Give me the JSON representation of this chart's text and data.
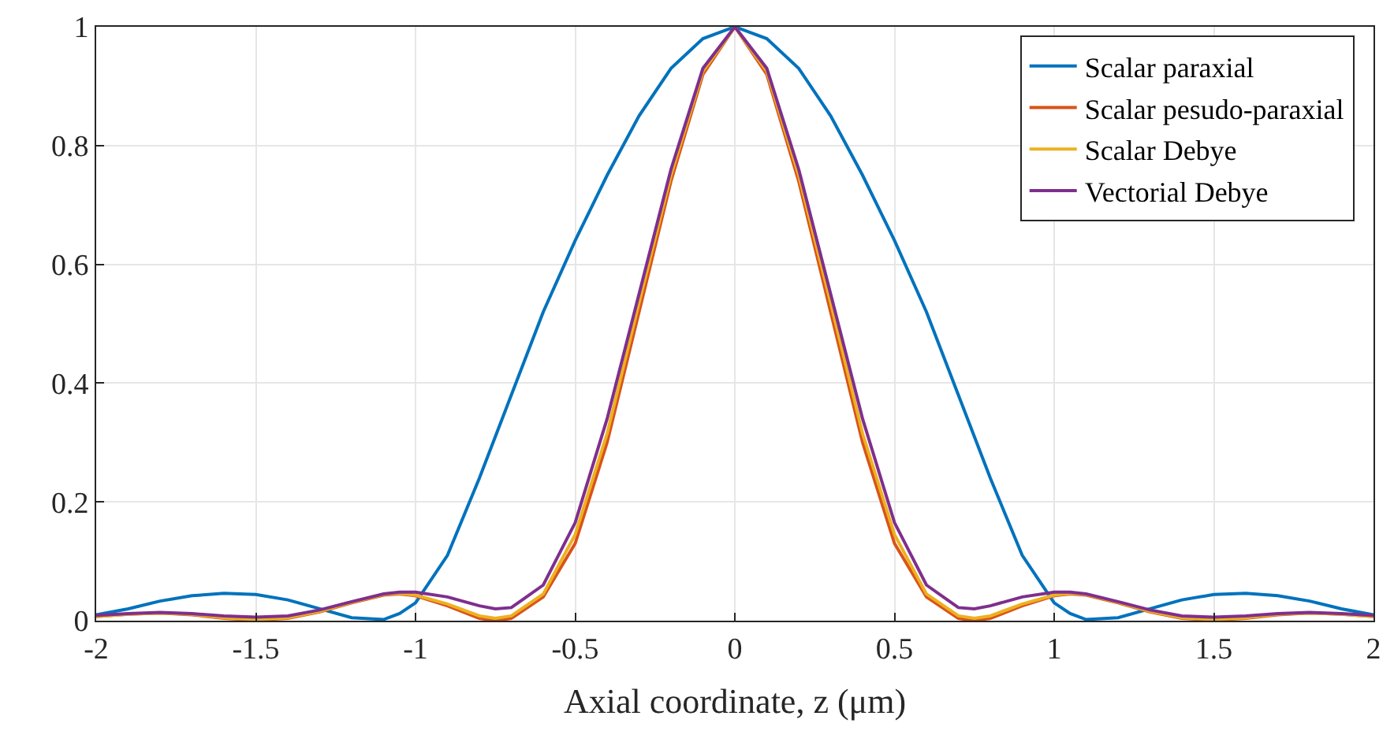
{
  "chart_data": {
    "type": "line",
    "xlabel": "Axial coordinate, z (μm)",
    "x": [
      -2,
      -1.9,
      -1.8,
      -1.7,
      -1.6,
      -1.5,
      -1.4,
      -1.3,
      -1.2,
      -1.1,
      -1.05,
      -1,
      -0.9,
      -0.8,
      -0.75,
      -0.7,
      -0.6,
      -0.5,
      -0.4,
      -0.3,
      -0.2,
      -0.1,
      0,
      0.1,
      0.2,
      0.3,
      0.4,
      0.5,
      0.6,
      0.7,
      0.75,
      0.8,
      0.9,
      1,
      1.05,
      1.1,
      1.2,
      1.3,
      1.4,
      1.5,
      1.6,
      1.7,
      1.8,
      1.9,
      2
    ],
    "series": [
      {
        "name": "Scalar paraxial",
        "color": "#0072bd",
        "values": [
          0.01,
          0.02,
          0.033,
          0.042,
          0.046,
          0.044,
          0.035,
          0.02,
          0.005,
          0.002,
          0.012,
          0.03,
          0.11,
          0.24,
          0.31,
          0.38,
          0.52,
          0.64,
          0.75,
          0.85,
          0.93,
          0.98,
          1,
          0.98,
          0.93,
          0.85,
          0.75,
          0.64,
          0.52,
          0.38,
          0.31,
          0.24,
          0.11,
          0.03,
          0.012,
          0.002,
          0.005,
          0.02,
          0.035,
          0.044,
          0.046,
          0.042,
          0.033,
          0.02,
          0.01
        ]
      },
      {
        "name": "Scalar pesudo-paraxial",
        "color": "#d95319",
        "values": [
          0.007,
          0.011,
          0.013,
          0.01,
          0.004,
          0.001,
          0.004,
          0.015,
          0.03,
          0.043,
          0.045,
          0.042,
          0.025,
          0.004,
          0,
          0.004,
          0.04,
          0.13,
          0.3,
          0.52,
          0.74,
          0.92,
          1,
          0.92,
          0.74,
          0.52,
          0.3,
          0.13,
          0.04,
          0.004,
          0,
          0.004,
          0.025,
          0.042,
          0.045,
          0.043,
          0.03,
          0.015,
          0.004,
          0.001,
          0.004,
          0.01,
          0.013,
          0.011,
          0.007
        ]
      },
      {
        "name": "Scalar Debye",
        "color": "#edb120",
        "values": [
          0.007,
          0.011,
          0.013,
          0.011,
          0.005,
          0.002,
          0.005,
          0.016,
          0.031,
          0.044,
          0.046,
          0.043,
          0.028,
          0.008,
          0.004,
          0.008,
          0.045,
          0.145,
          0.315,
          0.535,
          0.75,
          0.925,
          1,
          0.925,
          0.75,
          0.535,
          0.315,
          0.145,
          0.045,
          0.008,
          0.004,
          0.008,
          0.028,
          0.043,
          0.046,
          0.044,
          0.031,
          0.016,
          0.005,
          0.002,
          0.005,
          0.011,
          0.013,
          0.011,
          0.007
        ]
      },
      {
        "name": "Vectorial Debye",
        "color": "#7e2f8e",
        "values": [
          0.009,
          0.012,
          0.014,
          0.012,
          0.008,
          0.006,
          0.008,
          0.018,
          0.032,
          0.045,
          0.048,
          0.048,
          0.04,
          0.025,
          0.02,
          0.022,
          0.06,
          0.165,
          0.34,
          0.55,
          0.76,
          0.93,
          1,
          0.93,
          0.76,
          0.55,
          0.34,
          0.165,
          0.06,
          0.022,
          0.02,
          0.025,
          0.04,
          0.048,
          0.048,
          0.045,
          0.032,
          0.018,
          0.008,
          0.006,
          0.008,
          0.012,
          0.014,
          0.012,
          0.009
        ]
      }
    ],
    "xlim": [
      -2,
      2
    ],
    "xticks": [
      -2,
      -1.5,
      -1,
      -0.5,
      0,
      0.5,
      1,
      1.5,
      2
    ],
    "ylim": [
      0,
      1
    ],
    "yticks": [
      0,
      0.2,
      0.4,
      0.6,
      0.8,
      1
    ],
    "grid": true,
    "legend": "top right"
  }
}
